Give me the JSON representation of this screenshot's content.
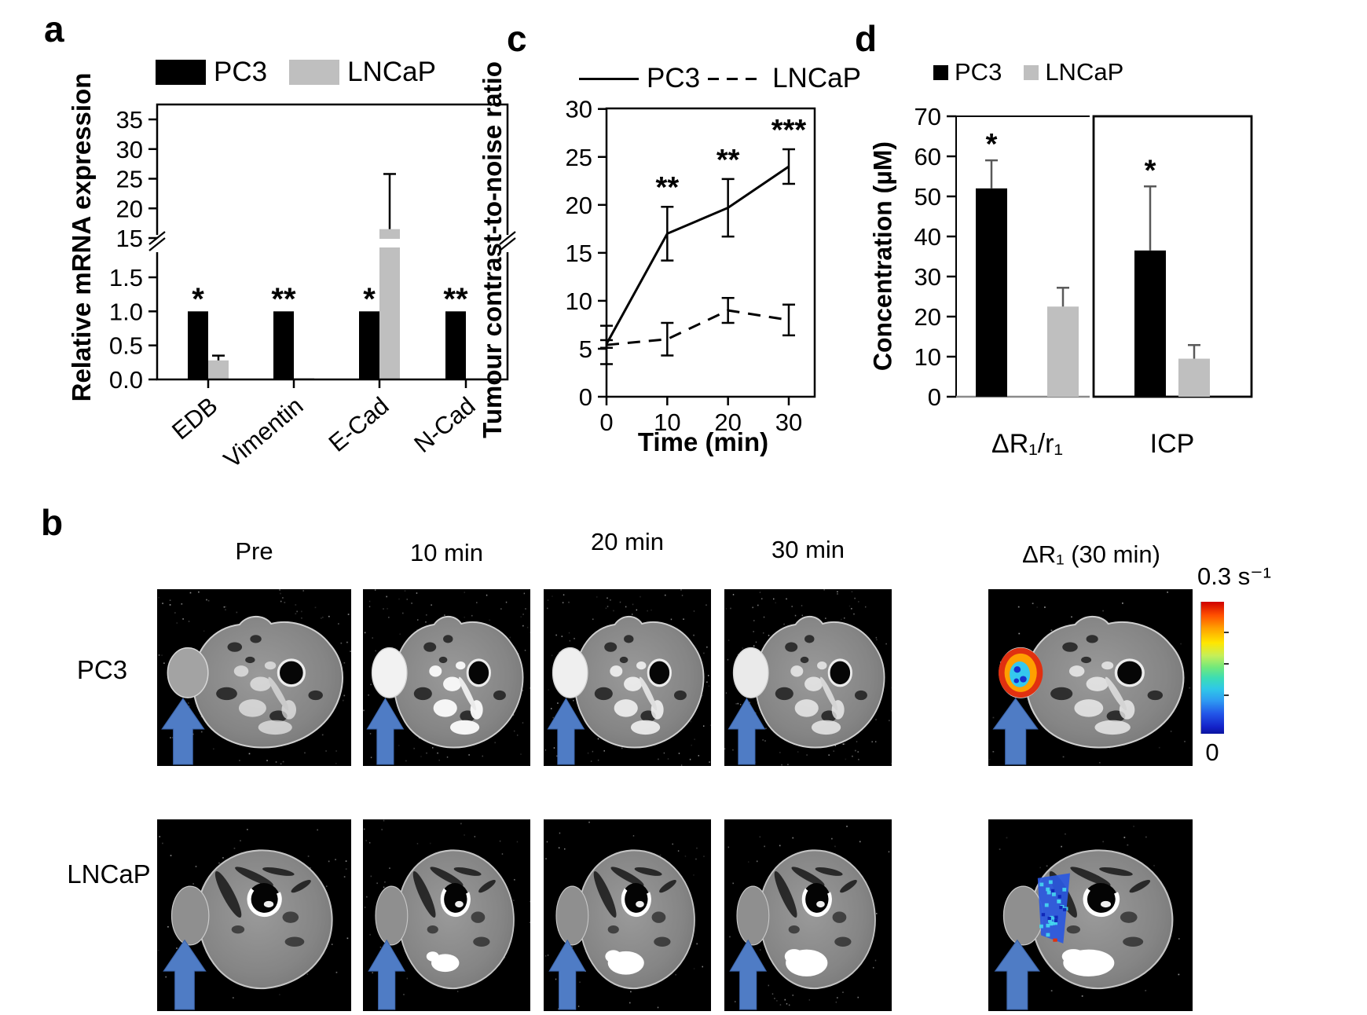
{
  "colors": {
    "pc3": "#000000",
    "lncap": "#bfbfbf",
    "arrow_blue": "#4f7cc5",
    "errorbar_gray": "#595959"
  },
  "chart_data": [
    {
      "id": "a",
      "panel_label": "a",
      "type": "bar",
      "title": "",
      "ylabel": "Relative mRNA expression",
      "categories": [
        "EDB",
        "Vimentin",
        "E-Cad",
        "N-Cad"
      ],
      "series": [
        {
          "name": "PC3",
          "color": "#000000",
          "values": [
            1.0,
            1.0,
            1.0,
            1.0
          ],
          "errors": [
            0,
            0,
            0,
            0
          ]
        },
        {
          "name": "LNCaP",
          "color": "#bfbfbf",
          "values": [
            0.28,
            0.02,
            16.5,
            0.02
          ],
          "errors": [
            0.07,
            0,
            9.3,
            0
          ]
        }
      ],
      "significance": [
        "*",
        "**",
        "*",
        "**"
      ],
      "axis_break": {
        "lower_range": [
          0,
          1.5
        ],
        "upper_range": [
          15,
          35
        ]
      },
      "yticks_lower": [
        0.0,
        0.5,
        1.0,
        1.5
      ],
      "yticks_upper": [
        15,
        20,
        25,
        30,
        35
      ],
      "grid": false,
      "legend_position": "top"
    },
    {
      "id": "c",
      "panel_label": "c",
      "type": "line",
      "title": "",
      "xlabel": "Time (min)",
      "ylabel": "Tumour contrast-to-noise ratio",
      "x": [
        0,
        10,
        20,
        30
      ],
      "xticks": [
        0,
        10,
        20,
        30
      ],
      "yticks": [
        0,
        5,
        10,
        15,
        20,
        25,
        30
      ],
      "xlim": [
        0,
        35
      ],
      "ylim": [
        0,
        30
      ],
      "series": [
        {
          "name": "PC3",
          "style": "solid",
          "values": [
            5.5,
            17,
            19.7,
            24
          ],
          "errors": [
            0.4,
            2.8,
            3.0,
            1.8
          ]
        },
        {
          "name": "LNCaP",
          "style": "dashed",
          "values": [
            5.4,
            6,
            9,
            8
          ],
          "errors": [
            2.0,
            1.7,
            1.3,
            1.6
          ]
        }
      ],
      "significance": [
        {
          "x": 10,
          "text": "**"
        },
        {
          "x": 20,
          "text": "**"
        },
        {
          "x": 30,
          "text": "***"
        }
      ],
      "grid": false,
      "legend_position": "top"
    },
    {
      "id": "d",
      "panel_label": "d",
      "type": "bar",
      "title": "",
      "ylabel": "Concentration (µM)",
      "groups": [
        "ΔR₁/r₁",
        "ICP"
      ],
      "yticks": [
        0,
        10,
        20,
        30,
        40,
        50,
        60,
        70
      ],
      "ylim": [
        0,
        70
      ],
      "series": [
        {
          "name": "PC3",
          "color": "#000000",
          "values": [
            52,
            36.5
          ],
          "errors": [
            7,
            16
          ]
        },
        {
          "name": "LNCaP",
          "color": "#bfbfbf",
          "values": [
            22.5,
            9.5
          ],
          "errors": [
            4.7,
            3.4
          ]
        }
      ],
      "significance": [
        "*",
        "*"
      ],
      "grid": false,
      "legend_position": "top"
    }
  ],
  "panel_b": {
    "label": "b",
    "row_labels": [
      "PC3",
      "LNCaP"
    ],
    "column_headers": [
      "Pre",
      "10 min",
      "20 min",
      "30 min",
      "ΔR₁ (30 min)"
    ],
    "colorbar": {
      "top_label": "0.3 s⁻¹",
      "bottom_label": "0"
    }
  }
}
